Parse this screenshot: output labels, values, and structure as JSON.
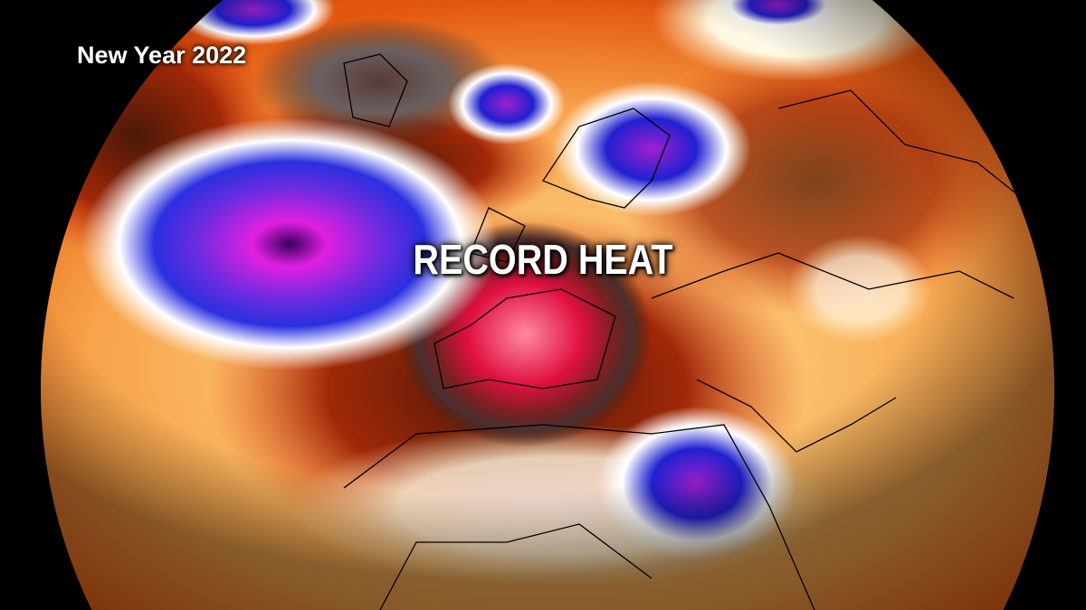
{
  "map": {
    "label": "New Year 2022",
    "annotation": "RECORD HEAT"
  }
}
